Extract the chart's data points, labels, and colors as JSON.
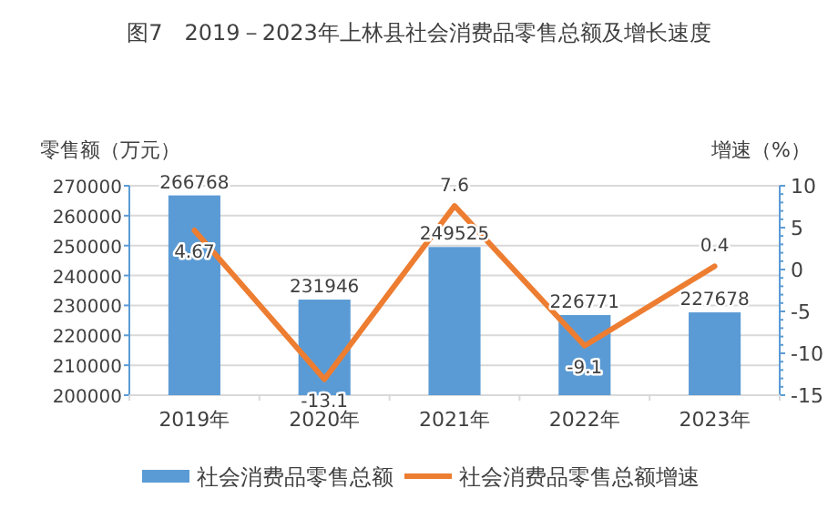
{
  "chart_data": {
    "type": "bar",
    "title": "图7　2019－2023年上林县社会消费品零售总额及增长速度",
    "ylabel": "零售额（万元）",
    "y2label": "增速（%）",
    "categories": [
      "2019年",
      "2020年",
      "2021年",
      "2022年",
      "2023年"
    ],
    "series": [
      {
        "name": "社会消费品零售总额",
        "color": "#5b9bd5",
        "values": [
          266768,
          231946,
          249525,
          226771,
          227678
        ]
      },
      {
        "name": "社会消费品零售总额增速",
        "type": "line",
        "axis": "y2",
        "color": "#ed7d31",
        "values": [
          4.67,
          -13.1,
          7.6,
          -9.1,
          0.4
        ]
      }
    ],
    "ylim": [
      200000,
      270000
    ],
    "yticks": [
      200000,
      210000,
      220000,
      230000,
      240000,
      250000,
      260000,
      270000
    ],
    "y2lim": [
      -15,
      10
    ],
    "y2ticks": [
      -15,
      -10,
      -5,
      0,
      5,
      10
    ],
    "grid": "y",
    "data_labels": true,
    "legend": "bottom",
    "marker": "none"
  }
}
